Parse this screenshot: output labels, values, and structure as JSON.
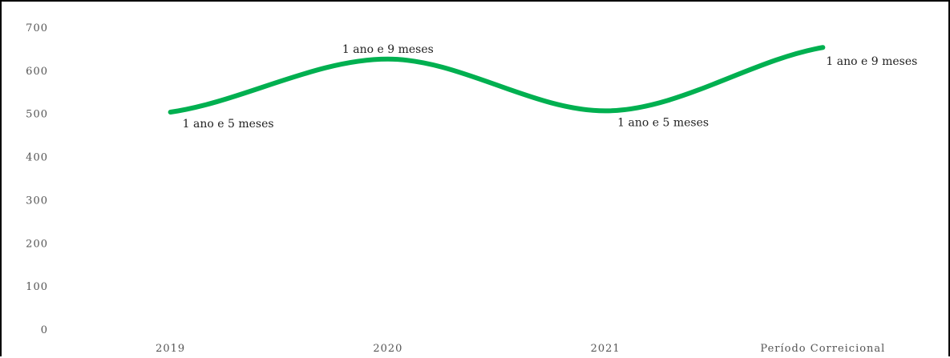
{
  "chart_data": {
    "type": "line",
    "categories": [
      "2019",
      "2020",
      "2021",
      "Período Correicional"
    ],
    "series": [
      {
        "values": [
          505,
          628,
          508,
          655
        ],
        "data_labels": [
          "1 ano e 5 meses",
          "1 ano e 9 meses",
          "1 ano e 5 meses",
          "1 ano e 9 meses"
        ],
        "color": "#00b050",
        "smooth": true
      }
    ],
    "y_ticks": [
      "0",
      "100",
      "200",
      "300",
      "400",
      "500",
      "600",
      "700"
    ],
    "ylim": [
      0,
      700
    ],
    "grid": false,
    "title": "",
    "xlabel": "",
    "ylabel": ""
  }
}
